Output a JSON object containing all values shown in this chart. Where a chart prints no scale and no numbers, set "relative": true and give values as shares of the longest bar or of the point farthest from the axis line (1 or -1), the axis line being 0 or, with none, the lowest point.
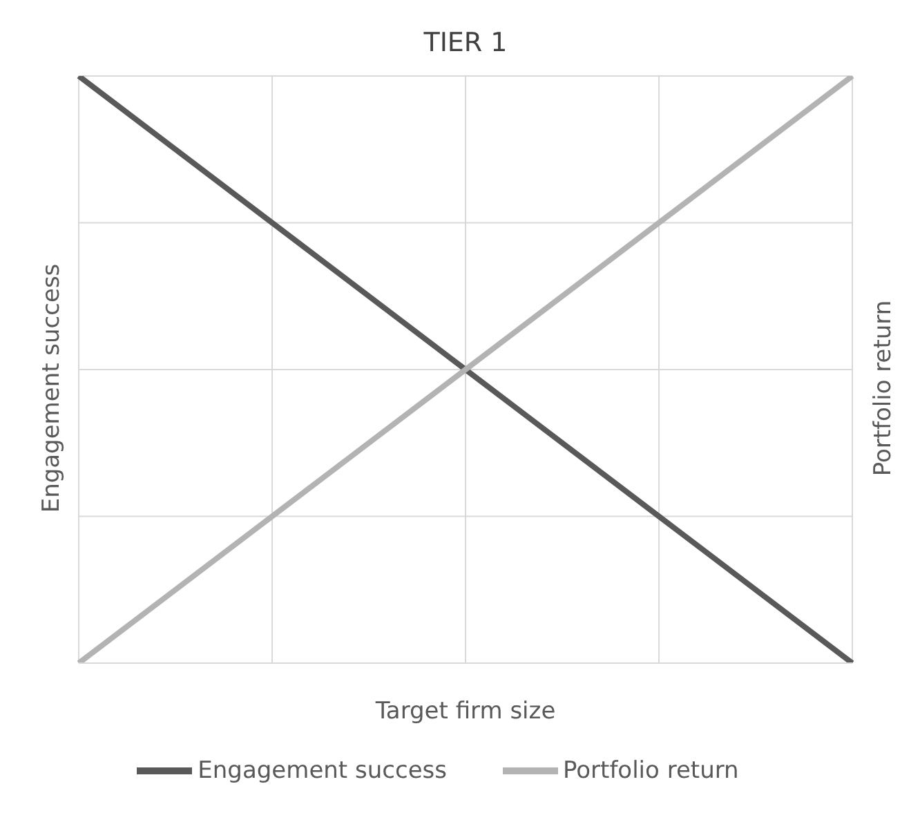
{
  "chart_data": {
    "type": "line",
    "title": "TIER 1",
    "xlabel": "Target firm size",
    "ylabel": "Engagement success",
    "y2label": "Portfolio return",
    "relative": true,
    "categories": [
      null,
      null,
      null,
      null,
      null
    ],
    "series": [
      {
        "name": "Engagement success",
        "color": "#595959",
        "values": [
          1,
          0.75,
          0.5,
          0.25,
          0
        ]
      },
      {
        "name": "Portfolio return",
        "color": "#b3b3b3",
        "values": [
          0,
          0.25,
          0.5,
          0.75,
          1
        ]
      }
    ],
    "grid": true,
    "legend": "bottom",
    "marker": "none",
    "line_style": "solid"
  }
}
